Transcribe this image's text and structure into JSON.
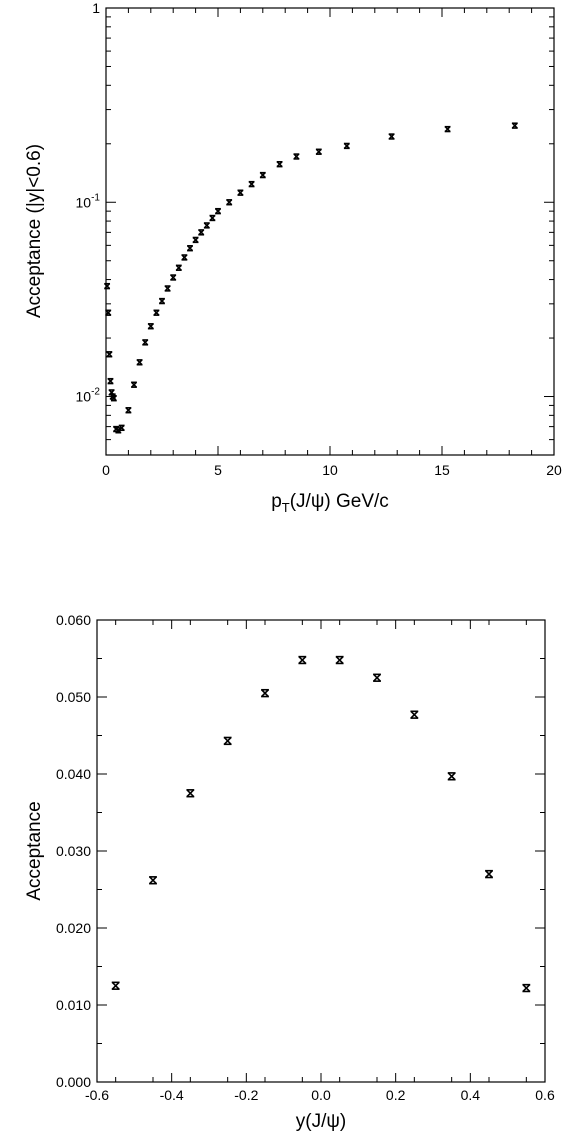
{
  "chart_data": [
    {
      "type": "scatter",
      "title": "",
      "xlabel": "p_T(J/ψ) GeV/c",
      "xlabel_main": "p",
      "xlabel_sub": "T",
      "xlabel_rest": "(J/ψ) GeV/c",
      "ylabel": "Acceptance (|y|<0.6)",
      "xlim": [
        0,
        20
      ],
      "ylim": [
        0.005,
        1
      ],
      "yscale": "log",
      "grid": false,
      "legend": "none",
      "x_ticks": [
        "0",
        "5",
        "10",
        "15",
        "20"
      ],
      "y_ticks": [
        {
          "base": "10",
          "exp": "-2"
        },
        {
          "base": "10",
          "exp": "-1"
        },
        {
          "base": "1",
          "exp": ""
        }
      ],
      "series": [
        {
          "x": [
            0.05,
            0.1,
            0.15,
            0.2,
            0.25,
            0.3,
            0.35,
            0.45,
            0.55,
            0.7,
            1.0,
            1.25,
            1.5,
            1.75,
            2.0,
            2.25,
            2.5,
            2.75,
            3.0,
            3.25,
            3.5,
            3.75,
            4.0,
            4.25,
            4.5,
            4.75,
            5.0,
            5.5,
            6.0,
            6.5,
            7.0,
            7.75,
            8.5,
            9.5,
            10.75,
            12.75,
            15.25,
            18.25
          ],
          "y": [
            0.037,
            0.027,
            0.0165,
            0.012,
            0.0105,
            0.01,
            0.0098,
            0.0068,
            0.0067,
            0.0069,
            0.0085,
            0.0115,
            0.015,
            0.019,
            0.023,
            0.027,
            0.031,
            0.036,
            0.041,
            0.046,
            0.052,
            0.058,
            0.064,
            0.07,
            0.076,
            0.083,
            0.09,
            0.1,
            0.112,
            0.124,
            0.138,
            0.157,
            0.172,
            0.182,
            0.195,
            0.218,
            0.238,
            0.248
          ]
        }
      ]
    },
    {
      "type": "scatter",
      "title": "",
      "xlabel": "y(J/ψ)",
      "ylabel": "Acceptance",
      "xlim": [
        -0.6,
        0.6
      ],
      "ylim": [
        0.0,
        0.06
      ],
      "grid": false,
      "legend": "none",
      "x_ticks": [
        "-0.6",
        "-0.4",
        "-0.2",
        "0.0",
        "0.2",
        "0.4",
        "0.6"
      ],
      "y_ticks": [
        "0.000",
        "0.010",
        "0.020",
        "0.030",
        "0.040",
        "0.050",
        "0.060"
      ],
      "series": [
        {
          "x": [
            -0.55,
            -0.45,
            -0.35,
            -0.25,
            -0.15,
            -0.05,
            0.05,
            0.15,
            0.25,
            0.35,
            0.45,
            0.55
          ],
          "y": [
            0.0125,
            0.0262,
            0.0375,
            0.0443,
            0.0505,
            0.0548,
            0.0548,
            0.0525,
            0.0477,
            0.0397,
            0.027,
            0.0122
          ]
        }
      ]
    }
  ]
}
